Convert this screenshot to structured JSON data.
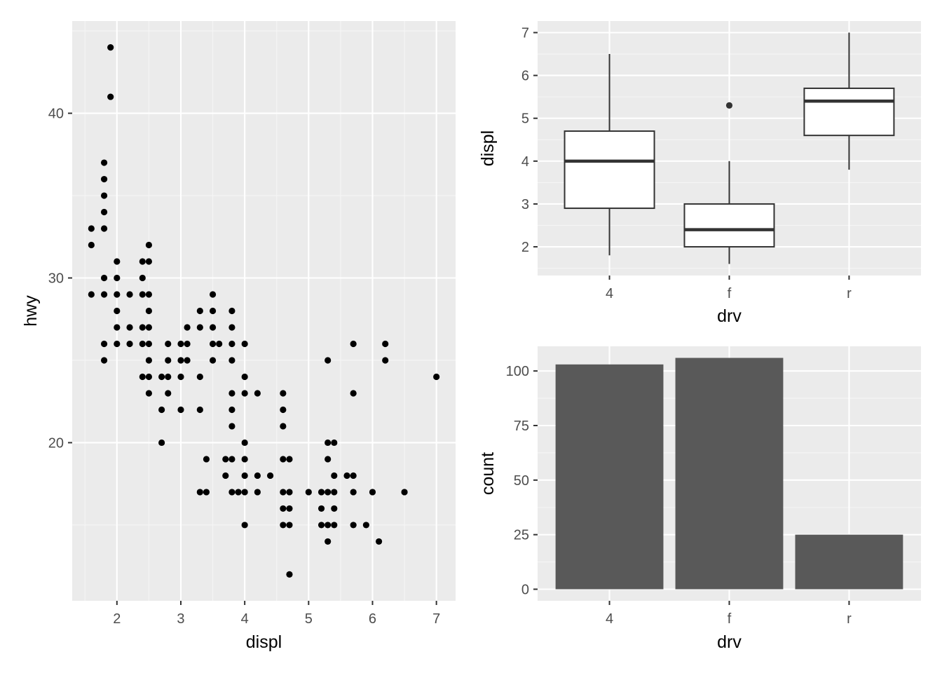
{
  "colors": {
    "panel_bg": "#ebebeb",
    "grid_major": "#ffffff",
    "grid_minor": "#f5f5f5",
    "tick_mark": "#333333",
    "tick_text": "#4d4d4d",
    "point": "#000000",
    "box_line": "#333333",
    "box_fill": "#ffffff",
    "bar_fill": "#595959"
  },
  "chart_data": [
    {
      "id": "scatter",
      "type": "scatter",
      "xlabel": "displ",
      "ylabel": "hwy",
      "xlim": [
        1.3,
        7.3
      ],
      "ylim": [
        10.4,
        45.6
      ],
      "x_ticks": [
        2,
        3,
        4,
        5,
        6,
        7
      ],
      "y_ticks": [
        20,
        30,
        40
      ],
      "points": [
        [
          1.6,
          33
        ],
        [
          1.6,
          32
        ],
        [
          1.6,
          29
        ],
        [
          1.8,
          37
        ],
        [
          1.8,
          36
        ],
        [
          1.8,
          35
        ],
        [
          1.8,
          34
        ],
        [
          1.8,
          33
        ],
        [
          1.8,
          30
        ],
        [
          1.8,
          29
        ],
        [
          1.8,
          26
        ],
        [
          1.8,
          25
        ],
        [
          1.9,
          44
        ],
        [
          1.9,
          41
        ],
        [
          2.0,
          31
        ],
        [
          2.0,
          30
        ],
        [
          2.0,
          29
        ],
        [
          2.0,
          28
        ],
        [
          2.0,
          27
        ],
        [
          2.0,
          26
        ],
        [
          2.2,
          29
        ],
        [
          2.2,
          27
        ],
        [
          2.2,
          26
        ],
        [
          2.4,
          31
        ],
        [
          2.4,
          30
        ],
        [
          2.4,
          29
        ],
        [
          2.4,
          27
        ],
        [
          2.4,
          26
        ],
        [
          2.4,
          24
        ],
        [
          2.5,
          32
        ],
        [
          2.5,
          31
        ],
        [
          2.5,
          29
        ],
        [
          2.5,
          28
        ],
        [
          2.5,
          27
        ],
        [
          2.5,
          26
        ],
        [
          2.5,
          25
        ],
        [
          2.5,
          24
        ],
        [
          2.5,
          23
        ],
        [
          2.7,
          24
        ],
        [
          2.7,
          22
        ],
        [
          2.7,
          20
        ],
        [
          2.8,
          26
        ],
        [
          2.8,
          25
        ],
        [
          2.8,
          24
        ],
        [
          2.8,
          23
        ],
        [
          3.0,
          26
        ],
        [
          3.0,
          25
        ],
        [
          3.0,
          24
        ],
        [
          3.0,
          22
        ],
        [
          3.1,
          27
        ],
        [
          3.1,
          26
        ],
        [
          3.1,
          25
        ],
        [
          3.3,
          28
        ],
        [
          3.3,
          27
        ],
        [
          3.3,
          24
        ],
        [
          3.3,
          22
        ],
        [
          3.3,
          17
        ],
        [
          3.4,
          19
        ],
        [
          3.4,
          17
        ],
        [
          3.5,
          29
        ],
        [
          3.5,
          28
        ],
        [
          3.5,
          27
        ],
        [
          3.5,
          26
        ],
        [
          3.5,
          25
        ],
        [
          3.6,
          26
        ],
        [
          3.7,
          19
        ],
        [
          3.7,
          18
        ],
        [
          3.8,
          28
        ],
        [
          3.8,
          27
        ],
        [
          3.8,
          26
        ],
        [
          3.8,
          25
        ],
        [
          3.8,
          23
        ],
        [
          3.8,
          22
        ],
        [
          3.8,
          21
        ],
        [
          3.8,
          19
        ],
        [
          3.8,
          17
        ],
        [
          3.9,
          17
        ],
        [
          4.0,
          26
        ],
        [
          4.0,
          24
        ],
        [
          4.0,
          23
        ],
        [
          4.0,
          20
        ],
        [
          4.0,
          19
        ],
        [
          4.0,
          18
        ],
        [
          4.0,
          17
        ],
        [
          4.0,
          15
        ],
        [
          4.2,
          23
        ],
        [
          4.2,
          18
        ],
        [
          4.2,
          17
        ],
        [
          4.4,
          18
        ],
        [
          4.6,
          23
        ],
        [
          4.6,
          22
        ],
        [
          4.6,
          21
        ],
        [
          4.6,
          19
        ],
        [
          4.6,
          17
        ],
        [
          4.6,
          16
        ],
        [
          4.6,
          15
        ],
        [
          4.7,
          19
        ],
        [
          4.7,
          17
        ],
        [
          4.7,
          16
        ],
        [
          4.7,
          15
        ],
        [
          4.7,
          12
        ],
        [
          5.0,
          17
        ],
        [
          5.2,
          17
        ],
        [
          5.2,
          16
        ],
        [
          5.2,
          15
        ],
        [
          5.3,
          25
        ],
        [
          5.3,
          20
        ],
        [
          5.3,
          19
        ],
        [
          5.3,
          17
        ],
        [
          5.3,
          15
        ],
        [
          5.3,
          14
        ],
        [
          5.4,
          20
        ],
        [
          5.4,
          18
        ],
        [
          5.4,
          17
        ],
        [
          5.4,
          16
        ],
        [
          5.4,
          15
        ],
        [
          5.6,
          18
        ],
        [
          5.7,
          26
        ],
        [
          5.7,
          23
        ],
        [
          5.7,
          18
        ],
        [
          5.7,
          17
        ],
        [
          5.7,
          15
        ],
        [
          5.9,
          15
        ],
        [
          6.0,
          17
        ],
        [
          6.1,
          14
        ],
        [
          6.2,
          26
        ],
        [
          6.2,
          25
        ],
        [
          6.5,
          17
        ],
        [
          7.0,
          24
        ]
      ]
    },
    {
      "id": "boxplot",
      "type": "boxplot",
      "xlabel": "drv",
      "ylabel": "displ",
      "categories": [
        "4",
        "f",
        "r"
      ],
      "ylim": [
        1.33,
        7.27
      ],
      "y_ticks": [
        2,
        3,
        4,
        5,
        6,
        7
      ],
      "boxes": [
        {
          "category": "4",
          "whisker_low": 1.8,
          "q1": 2.9,
          "median": 4.0,
          "q3": 4.7,
          "whisker_high": 6.5,
          "outliers": []
        },
        {
          "category": "f",
          "whisker_low": 1.6,
          "q1": 2.0,
          "median": 2.4,
          "q3": 3.0,
          "whisker_high": 4.0,
          "outliers": [
            5.3
          ]
        },
        {
          "category": "r",
          "whisker_low": 3.8,
          "q1": 4.6,
          "median": 5.4,
          "q3": 5.7,
          "whisker_high": 7.0,
          "outliers": []
        }
      ]
    },
    {
      "id": "bar",
      "type": "bar",
      "xlabel": "drv",
      "ylabel": "count",
      "categories": [
        "4",
        "f",
        "r"
      ],
      "values": [
        103,
        106,
        25
      ],
      "ylim": [
        -5.3,
        111.3
      ],
      "y_ticks": [
        0,
        25,
        50,
        75,
        100
      ]
    }
  ]
}
